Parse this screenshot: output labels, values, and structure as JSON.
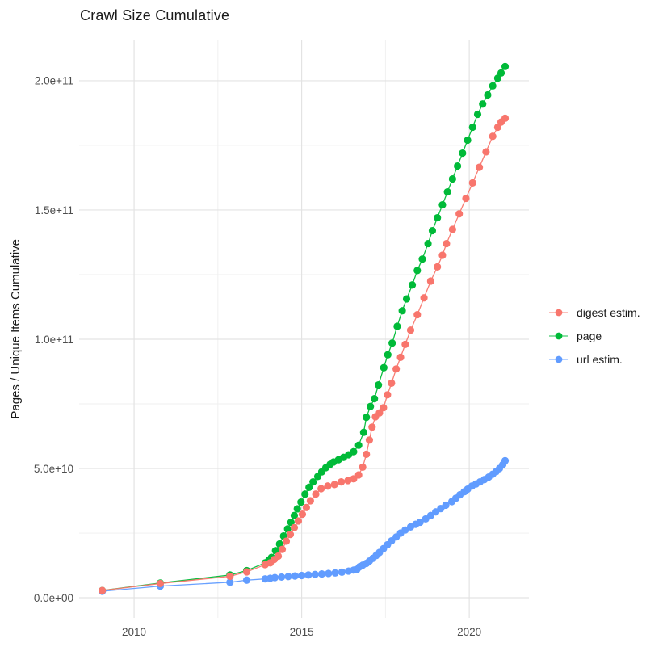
{
  "window": {
    "background": "#ffffff"
  },
  "chart_data": {
    "type": "scatter",
    "title": "Crawl Size Cumulative",
    "xlabel": "",
    "ylabel": "Pages / Unique Items Cumulative",
    "xlim": [
      2008.36,
      2021.78
    ],
    "ylim": [
      -7800000000.0,
      215600000000.0
    ],
    "grid": {
      "on": true,
      "major_color": "#e3e3e3",
      "minor_color": "#efefef"
    },
    "text_color": "#1a1a1a",
    "tick_label_color": "#4d4d4d",
    "x_ticks": {
      "values": [
        2010,
        2015,
        2020
      ],
      "labels": [
        "2010",
        "2015",
        "2020"
      ]
    },
    "x_minor_ticks": [
      2012.5,
      2017.5
    ],
    "y_ticks": {
      "values": [
        0,
        50000000000.0,
        100000000000.0,
        150000000000.0,
        200000000000.0
      ],
      "labels": [
        "0.0e+00",
        "5.0e+10",
        "1.0e+11",
        "1.5e+11",
        "2.0e+11"
      ]
    },
    "y_minor_ticks": [
      25000000000.0,
      75000000000.0,
      125000000000.0,
      175000000000.0
    ],
    "legend": {
      "position": "right",
      "items": [
        {
          "label": "digest estim.",
          "color": "#F8766D"
        },
        {
          "label": "page",
          "color": "#00BA38"
        },
        {
          "label": "url estim.",
          "color": "#619CFF"
        }
      ]
    },
    "series": [
      {
        "name": "digest estim.",
        "color": "#F8766D",
        "points": [
          [
            2009.05,
            2800000000.0
          ],
          [
            2010.78,
            5500000000.0
          ],
          [
            2012.86,
            8300000000.0
          ],
          [
            2013.36,
            10000000000.0
          ],
          [
            2013.91,
            12800000000.0
          ],
          [
            2014.06,
            13500000000.0
          ],
          [
            2014.18,
            14800000000.0
          ],
          [
            2014.3,
            16100000000.0
          ],
          [
            2014.42,
            18700000000.0
          ],
          [
            2014.54,
            21900000000.0
          ],
          [
            2014.66,
            24500000000.0
          ],
          [
            2014.78,
            27100000000.0
          ],
          [
            2014.9,
            29700000000.0
          ],
          [
            2015.02,
            32300000000.0
          ],
          [
            2015.14,
            34900000000.0
          ],
          [
            2015.26,
            37500000000.0
          ],
          [
            2015.42,
            40100000000.0
          ],
          [
            2015.58,
            42200000000.0
          ],
          [
            2015.78,
            43200000000.0
          ],
          [
            2015.98,
            43800000000.0
          ],
          [
            2016.18,
            44800000000.0
          ],
          [
            2016.38,
            45300000000.0
          ],
          [
            2016.55,
            46000000000.0
          ],
          [
            2016.7,
            47500000000.0
          ],
          [
            2016.82,
            50500000000.0
          ],
          [
            2016.93,
            55500000000.0
          ],
          [
            2017.02,
            61000000000.0
          ],
          [
            2017.1,
            66000000000.0
          ],
          [
            2017.2,
            70000000000.0
          ],
          [
            2017.32,
            71500000000.0
          ],
          [
            2017.44,
            73500000000.0
          ],
          [
            2017.56,
            78500000000.0
          ],
          [
            2017.68,
            83000000000.0
          ],
          [
            2017.82,
            88500000000.0
          ],
          [
            2017.95,
            93000000000.0
          ],
          [
            2018.09,
            98000000000.0
          ],
          [
            2018.25,
            103500000000.0
          ],
          [
            2018.45,
            109500000000.0
          ],
          [
            2018.65,
            116000000000.0
          ],
          [
            2018.85,
            122500000000.0
          ],
          [
            2019.05,
            128000000000.0
          ],
          [
            2019.2,
            132500000000.0
          ],
          [
            2019.32,
            137000000000.0
          ],
          [
            2019.5,
            142500000000.0
          ],
          [
            2019.7,
            148500000000.0
          ],
          [
            2019.9,
            154500000000.0
          ],
          [
            2020.1,
            160500000000.0
          ],
          [
            2020.3,
            166500000000.0
          ],
          [
            2020.5,
            172500000000.0
          ],
          [
            2020.7,
            178500000000.0
          ],
          [
            2020.85,
            182000000000.0
          ],
          [
            2020.95,
            184000000000.0
          ],
          [
            2021.07,
            185500000000.0
          ]
        ]
      },
      {
        "name": "page",
        "color": "#00BA38",
        "points": [
          [
            2009.05,
            2800000000.0
          ],
          [
            2010.78,
            5700000000.0
          ],
          [
            2012.86,
            8800000000.0
          ],
          [
            2013.36,
            10500000000.0
          ],
          [
            2013.91,
            13500000000.0
          ],
          [
            2014.02,
            14500000000.0
          ],
          [
            2014.1,
            15600000000.0
          ],
          [
            2014.22,
            18200000000.0
          ],
          [
            2014.34,
            20800000000.0
          ],
          [
            2014.46,
            23900000000.0
          ],
          [
            2014.58,
            26600000000.0
          ],
          [
            2014.68,
            29200000000.0
          ],
          [
            2014.78,
            31800000000.0
          ],
          [
            2014.87,
            34400000000.0
          ],
          [
            2014.98,
            37000000000.0
          ],
          [
            2015.1,
            40100000000.0
          ],
          [
            2015.22,
            42700000000.0
          ],
          [
            2015.34,
            44800000000.0
          ],
          [
            2015.48,
            46900000000.0
          ],
          [
            2015.6,
            48700000000.0
          ],
          [
            2015.72,
            50300000000.0
          ],
          [
            2015.85,
            51600000000.0
          ],
          [
            2015.95,
            52500000000.0
          ],
          [
            2016.1,
            53400000000.0
          ],
          [
            2016.25,
            54300000000.0
          ],
          [
            2016.4,
            55300000000.0
          ],
          [
            2016.55,
            56500000000.0
          ],
          [
            2016.7,
            59000000000.0
          ],
          [
            2016.85,
            64000000000.0
          ],
          [
            2016.93,
            69800000000.0
          ],
          [
            2017.05,
            74000000000.0
          ],
          [
            2017.17,
            77000000000.0
          ],
          [
            2017.29,
            82300000000.0
          ],
          [
            2017.45,
            89000000000.0
          ],
          [
            2017.57,
            94000000000.0
          ],
          [
            2017.7,
            98500000000.0
          ],
          [
            2017.85,
            105000000000.0
          ],
          [
            2018.0,
            111000000000.0
          ],
          [
            2018.13,
            115600000000.0
          ],
          [
            2018.3,
            121000000000.0
          ],
          [
            2018.45,
            126600000000.0
          ],
          [
            2018.6,
            131000000000.0
          ],
          [
            2018.77,
            137000000000.0
          ],
          [
            2018.9,
            142000000000.0
          ],
          [
            2019.05,
            147000000000.0
          ],
          [
            2019.2,
            152000000000.0
          ],
          [
            2019.35,
            157000000000.0
          ],
          [
            2019.5,
            162000000000.0
          ],
          [
            2019.65,
            167000000000.0
          ],
          [
            2019.8,
            172000000000.0
          ],
          [
            2019.95,
            177000000000.0
          ],
          [
            2020.1,
            182000000000.0
          ],
          [
            2020.25,
            187000000000.0
          ],
          [
            2020.4,
            191000000000.0
          ],
          [
            2020.55,
            194500000000.0
          ],
          [
            2020.7,
            198000000000.0
          ],
          [
            2020.85,
            201000000000.0
          ],
          [
            2020.95,
            203000000000.0
          ],
          [
            2021.07,
            205500000000.0
          ]
        ]
      },
      {
        "name": "url estim.",
        "color": "#619CFF",
        "points": [
          [
            2009.05,
            2500000000.0
          ],
          [
            2010.78,
            4500000000.0
          ],
          [
            2012.86,
            6000000000.0
          ],
          [
            2013.36,
            6800000000.0
          ],
          [
            2013.91,
            7300000000.0
          ],
          [
            2014.06,
            7500000000.0
          ],
          [
            2014.2,
            7800000000.0
          ],
          [
            2014.4,
            8000000000.0
          ],
          [
            2014.6,
            8200000000.0
          ],
          [
            2014.8,
            8400000000.0
          ],
          [
            2015.0,
            8600000000.0
          ],
          [
            2015.2,
            8800000000.0
          ],
          [
            2015.4,
            9000000000.0
          ],
          [
            2015.6,
            9200000000.0
          ],
          [
            2015.8,
            9400000000.0
          ],
          [
            2016.0,
            9600000000.0
          ],
          [
            2016.2,
            9900000000.0
          ],
          [
            2016.4,
            10300000000.0
          ],
          [
            2016.55,
            10700000000.0
          ],
          [
            2016.65,
            11000000000.0
          ],
          [
            2016.73,
            12000000000.0
          ],
          [
            2016.82,
            12600000000.0
          ],
          [
            2016.93,
            13300000000.0
          ],
          [
            2017.02,
            14200000000.0
          ],
          [
            2017.12,
            15200000000.0
          ],
          [
            2017.22,
            16300000000.0
          ],
          [
            2017.32,
            17500000000.0
          ],
          [
            2017.44,
            19000000000.0
          ],
          [
            2017.56,
            20500000000.0
          ],
          [
            2017.68,
            22000000000.0
          ],
          [
            2017.82,
            23500000000.0
          ],
          [
            2017.95,
            25000000000.0
          ],
          [
            2018.09,
            26200000000.0
          ],
          [
            2018.25,
            27400000000.0
          ],
          [
            2018.4,
            28400000000.0
          ],
          [
            2018.53,
            29200000000.0
          ],
          [
            2018.7,
            30500000000.0
          ],
          [
            2018.85,
            31800000000.0
          ],
          [
            2019.0,
            33200000000.0
          ],
          [
            2019.15,
            34500000000.0
          ],
          [
            2019.3,
            35800000000.0
          ],
          [
            2019.48,
            37200000000.0
          ],
          [
            2019.6,
            38500000000.0
          ],
          [
            2019.72,
            39800000000.0
          ],
          [
            2019.85,
            41000000000.0
          ],
          [
            2019.95,
            42000000000.0
          ],
          [
            2020.08,
            43200000000.0
          ],
          [
            2020.2,
            44000000000.0
          ],
          [
            2020.32,
            44800000000.0
          ],
          [
            2020.45,
            45700000000.0
          ],
          [
            2020.58,
            46700000000.0
          ],
          [
            2020.7,
            47800000000.0
          ],
          [
            2020.8,
            48800000000.0
          ],
          [
            2020.9,
            50000000000.0
          ],
          [
            2021.0,
            51500000000.0
          ],
          [
            2021.07,
            53000000000.0
          ]
        ]
      }
    ]
  }
}
